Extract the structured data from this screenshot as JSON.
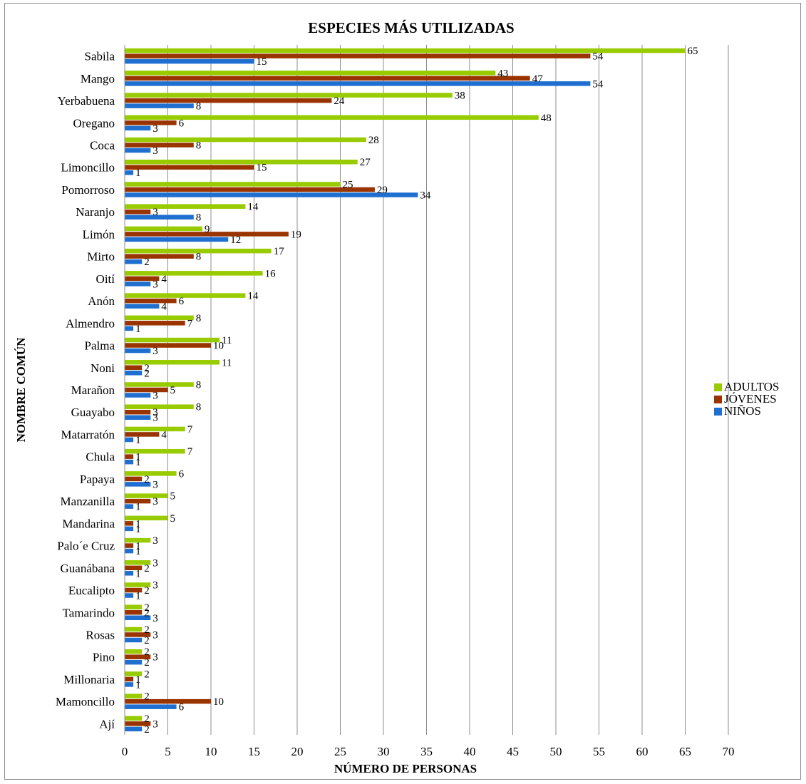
{
  "chart_data": {
    "type": "bar",
    "orientation": "horizontal",
    "title": "ESPECIES MÁS UTILIZADAS",
    "xlabel": "NÚMERO DE PERSONAS",
    "ylabel": "NOMBRE COMÚN",
    "xlim": [
      0,
      70
    ],
    "xticks": [
      0,
      5,
      10,
      15,
      20,
      25,
      30,
      35,
      40,
      45,
      50,
      55,
      60,
      65,
      70
    ],
    "grid": "vertical",
    "legend_position": "right",
    "categories": [
      "Sabila",
      "Mango",
      "Yerbabuena",
      "Oregano",
      "Coca",
      "Limoncillo",
      "Pomorroso",
      "Naranjo",
      "Limón",
      "Mirto",
      "Oití",
      "Anón",
      "Almendro",
      "Palma",
      "Noni",
      "Marañon",
      "Guayabo",
      "Matarratón",
      "Chula",
      "Papaya",
      "Manzanilla",
      "Mandarina",
      "Palo´e Cruz",
      "Guanábana",
      "Eucalipto",
      "Tamarindo",
      "Rosas",
      "Pino",
      "Millonaria",
      "Mamoncillo",
      "Ají"
    ],
    "series": [
      {
        "name": "ADULTOS",
        "color": "#99cc00",
        "values": [
          65,
          43,
          38,
          48,
          28,
          27,
          25,
          14,
          9,
          17,
          16,
          14,
          8,
          11,
          11,
          8,
          8,
          7,
          7,
          6,
          5,
          5,
          3,
          3,
          3,
          2,
          2,
          2,
          2,
          2,
          2
        ]
      },
      {
        "name": "JÓVENES",
        "color": "#993300",
        "values": [
          54,
          47,
          24,
          6,
          8,
          15,
          29,
          3,
          19,
          8,
          4,
          6,
          7,
          10,
          2,
          5,
          3,
          4,
          1,
          2,
          3,
          1,
          1,
          2,
          2,
          2,
          3,
          3,
          1,
          10,
          3
        ]
      },
      {
        "name": "NIÑOS",
        "color": "#1f6fd0",
        "values": [
          15,
          54,
          8,
          3,
          3,
          1,
          34,
          8,
          12,
          2,
          3,
          4,
          1,
          3,
          2,
          3,
          3,
          1,
          1,
          3,
          1,
          1,
          1,
          1,
          1,
          3,
          2,
          2,
          1,
          6,
          2
        ]
      }
    ]
  }
}
